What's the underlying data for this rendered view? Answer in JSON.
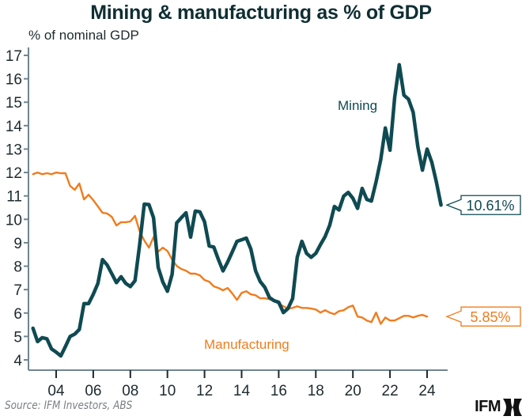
{
  "header": {
    "title": "Mining & manufacturing as % of GDP",
    "unit_label": "% of nominal GDP"
  },
  "footer": {
    "source": "Source: IFM Investors, ABS",
    "logo_text": "IFM"
  },
  "colors": {
    "mining": "#0f4a52",
    "manufacturing": "#f07c1d",
    "axis": "#6f8690",
    "text": "#1d2a2e"
  },
  "chart_data": {
    "type": "line",
    "title": "Mining & manufacturing as % of GDP",
    "xlabel": "",
    "ylabel": "% of nominal GDP",
    "ylim": [
      4,
      17
    ],
    "xlim": [
      2002.5,
      2025
    ],
    "yticks": [
      4,
      5,
      6,
      7,
      8,
      9,
      10,
      11,
      12,
      13,
      14,
      15,
      16,
      17
    ],
    "xticks": [
      {
        "value": 2004,
        "label": "04"
      },
      {
        "value": 2006,
        "label": "06"
      },
      {
        "value": 2008,
        "label": "08"
      },
      {
        "value": 2010,
        "label": "10"
      },
      {
        "value": 2012,
        "label": "12"
      },
      {
        "value": 2014,
        "label": "14"
      },
      {
        "value": 2016,
        "label": "16"
      },
      {
        "value": 2018,
        "label": "18"
      },
      {
        "value": 2020,
        "label": "20"
      },
      {
        "value": 2022,
        "label": "22"
      },
      {
        "value": 2024,
        "label": "24"
      }
    ],
    "grid": false,
    "legend": "inline labels",
    "x_start": 2002.75,
    "x_step": 0.25,
    "series": [
      {
        "name": "Mining",
        "label": "Mining",
        "color": "#0f4a52",
        "last_value_label": "10.61%",
        "values": [
          5.35,
          4.78,
          4.95,
          4.9,
          4.47,
          4.33,
          4.17,
          4.57,
          5.0,
          5.1,
          5.3,
          6.4,
          6.4,
          6.8,
          7.27,
          8.28,
          8.05,
          7.68,
          7.3,
          7.55,
          7.27,
          7.13,
          7.38,
          8.9,
          10.65,
          10.63,
          10.07,
          7.95,
          7.33,
          6.93,
          7.65,
          9.85,
          10.07,
          10.28,
          9.24,
          10.35,
          10.32,
          9.9,
          8.86,
          8.82,
          8.28,
          7.8,
          8.18,
          8.62,
          9.06,
          9.13,
          9.2,
          8.73,
          7.81,
          7.35,
          7.1,
          6.66,
          6.53,
          6.46,
          6.02,
          6.19,
          6.62,
          8.38,
          9.06,
          8.55,
          8.38,
          8.55,
          8.92,
          9.26,
          9.75,
          10.55,
          10.4,
          10.99,
          11.15,
          10.9,
          10.47,
          11.32,
          10.85,
          10.78,
          11.6,
          12.55,
          13.9,
          12.95,
          15.2,
          16.6,
          15.3,
          15.13,
          14.57,
          13.1,
          12.1,
          13.0,
          12.44,
          11.6,
          10.61
        ]
      },
      {
        "name": "Manufacturing",
        "label": "Manufacturing",
        "color": "#f07c1d",
        "last_value_label": "5.85%",
        "values": [
          11.93,
          12.0,
          11.93,
          11.97,
          11.93,
          12.0,
          11.97,
          11.97,
          11.43,
          11.26,
          11.53,
          10.85,
          11.05,
          10.82,
          10.55,
          10.28,
          10.25,
          10.11,
          9.74,
          9.88,
          9.88,
          9.91,
          10.15,
          9.5,
          9.1,
          8.79,
          9.24,
          8.62,
          8.79,
          8.65,
          8.28,
          8.01,
          7.88,
          7.81,
          7.68,
          7.68,
          7.61,
          7.41,
          7.34,
          7.14,
          7.07,
          6.97,
          7.07,
          6.83,
          6.56,
          6.86,
          6.93,
          6.8,
          6.76,
          6.63,
          6.63,
          6.59,
          6.53,
          6.39,
          6.29,
          6.19,
          6.22,
          6.29,
          6.22,
          6.22,
          6.19,
          6.15,
          6.02,
          6.12,
          6.02,
          5.95,
          6.08,
          6.12,
          6.25,
          6.32,
          5.85,
          5.81,
          5.68,
          5.61,
          6.02,
          5.54,
          5.81,
          5.68,
          5.68,
          5.78,
          5.88,
          5.88,
          5.81,
          5.88,
          5.92,
          5.85
        ]
      }
    ],
    "annotations": [
      {
        "text": "10.61%",
        "series": "Mining"
      },
      {
        "text": "5.85%",
        "series": "Manufacturing"
      }
    ]
  }
}
